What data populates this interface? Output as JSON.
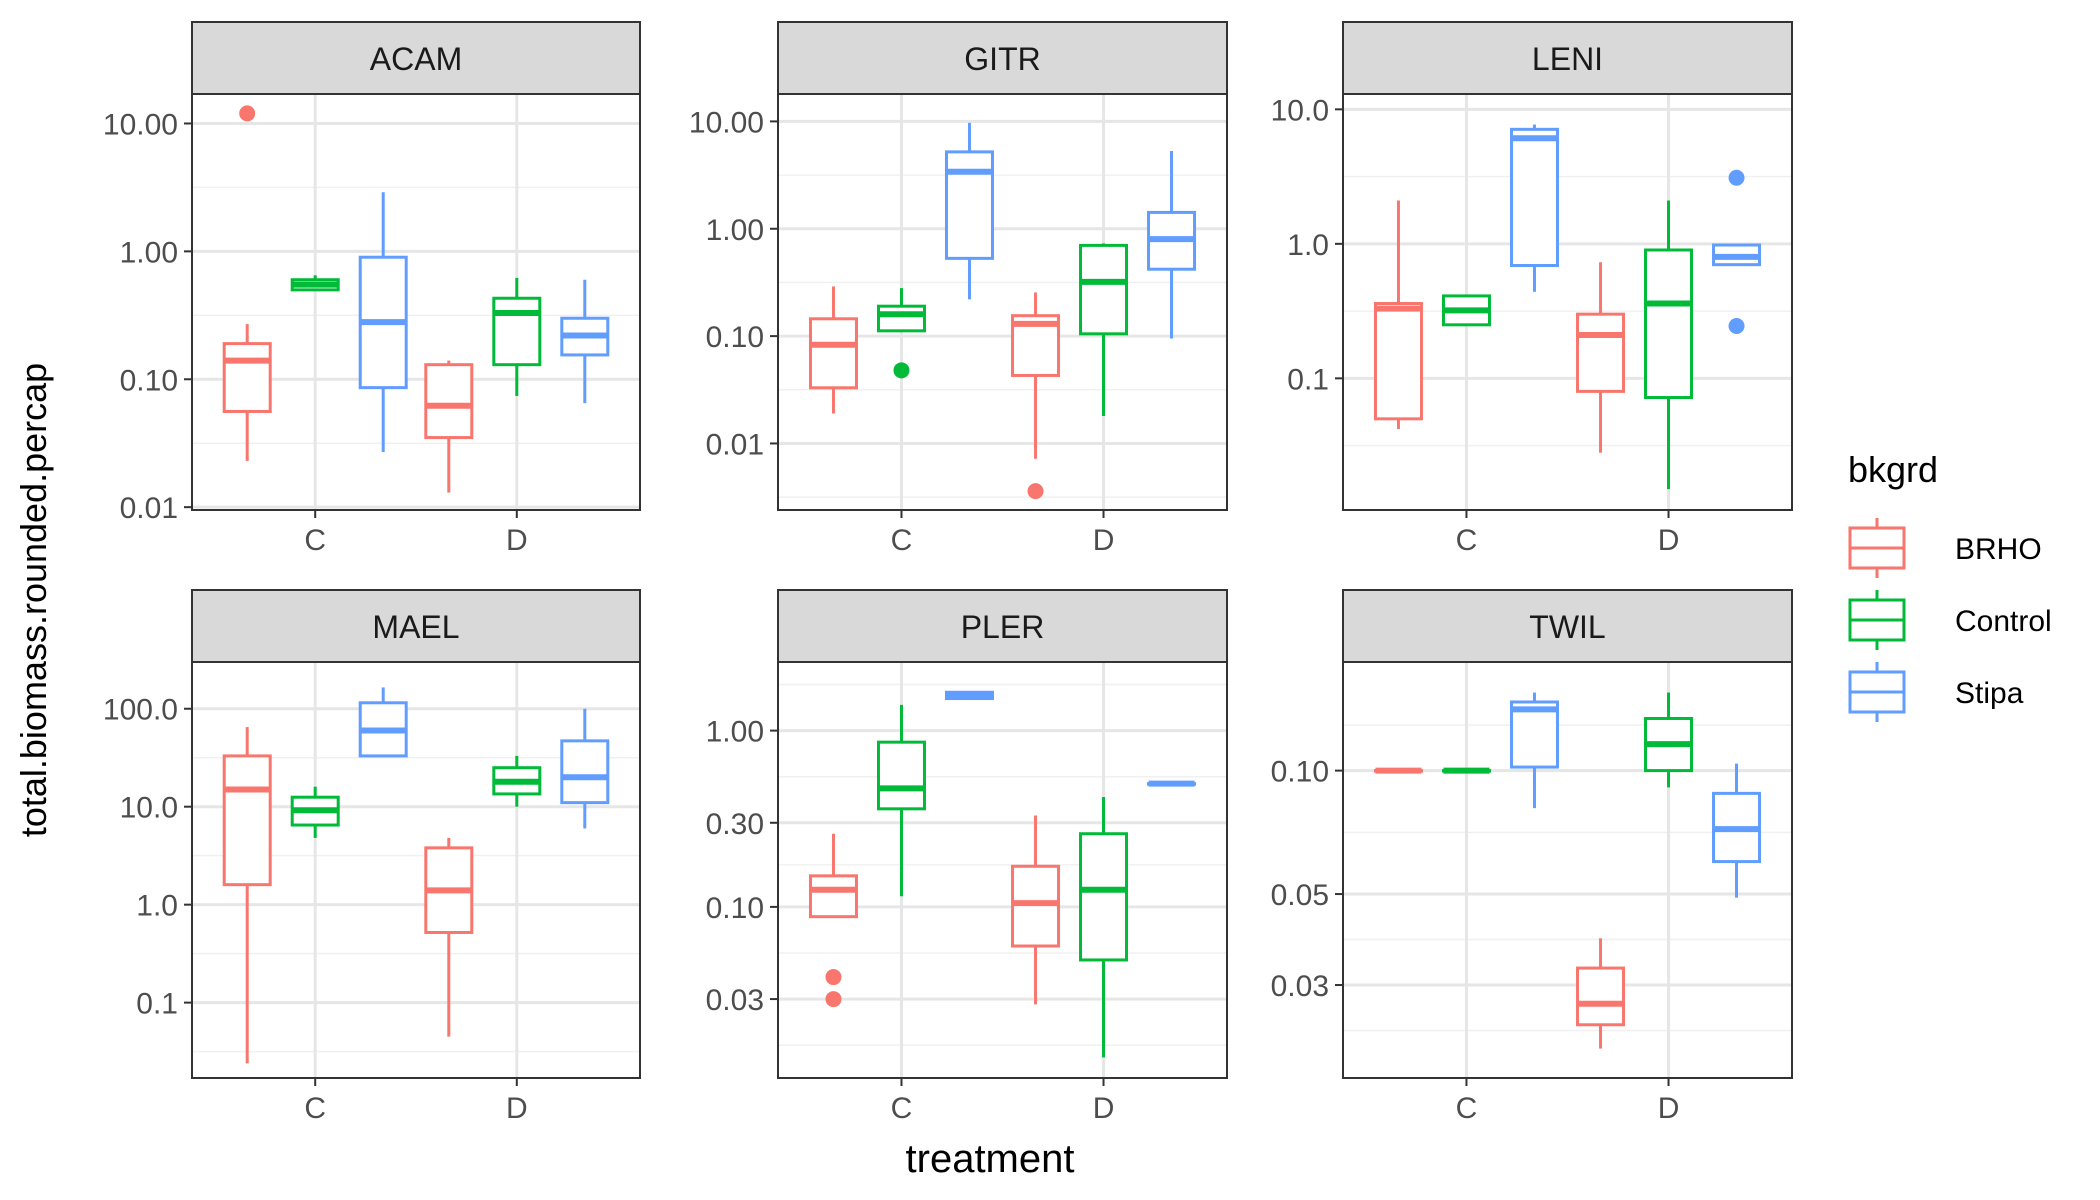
{
  "chart_data": {
    "type": "boxplot",
    "title": "",
    "xlabel": "treatment",
    "ylabel": "total.biomass.rounded.percap",
    "y_scale": "log10",
    "grid": true,
    "facet_layout": "3 columns x 2 rows",
    "categories": [
      "C",
      "D"
    ],
    "legend": {
      "title": "bkgrd",
      "position": "right",
      "entries": [
        {
          "name": "BRHO",
          "color": "#F8766D"
        },
        {
          "name": "Control",
          "color": "#00BA38"
        },
        {
          "name": "Stipa",
          "color": "#619CFF"
        }
      ]
    },
    "panels": [
      {
        "name": "ACAM",
        "ylim": [
          0.0095,
          17
        ],
        "ticks": [
          {
            "v": 0.01,
            "label": "0.01"
          },
          {
            "v": 0.1,
            "label": "0.10"
          },
          {
            "v": 1,
            "label": "1.00"
          },
          {
            "v": 10,
            "label": "10.00"
          }
        ],
        "boxes": [
          {
            "category": "C",
            "series": "BRHO",
            "min": 0.023,
            "q1": 0.056,
            "median": 0.14,
            "q3": 0.19,
            "max": 0.27,
            "outliers": [
              12
            ]
          },
          {
            "category": "C",
            "series": "Control",
            "min": 0.5,
            "q1": 0.5,
            "median": 0.55,
            "q3": 0.6,
            "max": 0.65,
            "outliers": []
          },
          {
            "category": "C",
            "series": "Stipa",
            "min": 0.027,
            "q1": 0.086,
            "median": 0.28,
            "q3": 0.9,
            "max": 2.9,
            "outliers": []
          },
          {
            "category": "D",
            "series": "BRHO",
            "min": 0.013,
            "q1": 0.035,
            "median": 0.062,
            "q3": 0.13,
            "max": 0.14,
            "outliers": []
          },
          {
            "category": "D",
            "series": "Control",
            "min": 0.074,
            "q1": 0.13,
            "median": 0.33,
            "q3": 0.43,
            "max": 0.62,
            "outliers": []
          },
          {
            "category": "D",
            "series": "Stipa",
            "min": 0.065,
            "q1": 0.155,
            "median": 0.22,
            "q3": 0.3,
            "max": 0.6,
            "outliers": []
          }
        ]
      },
      {
        "name": "GITR",
        "ylim": [
          0.0024,
          18
        ],
        "ticks": [
          {
            "v": 0.01,
            "label": "0.01"
          },
          {
            "v": 0.1,
            "label": "0.10"
          },
          {
            "v": 1,
            "label": "1.00"
          },
          {
            "v": 10,
            "label": "10.00"
          }
        ],
        "boxes": [
          {
            "category": "C",
            "series": "BRHO",
            "min": 0.019,
            "q1": 0.033,
            "median": 0.083,
            "q3": 0.145,
            "max": 0.29,
            "outliers": []
          },
          {
            "category": "C",
            "series": "Control",
            "min": 0.11,
            "q1": 0.112,
            "median": 0.16,
            "q3": 0.19,
            "max": 0.28,
            "outliers": [
              0.048
            ]
          },
          {
            "category": "C",
            "series": "Stipa",
            "min": 0.22,
            "q1": 0.53,
            "median": 3.4,
            "q3": 5.2,
            "max": 9.7,
            "outliers": []
          },
          {
            "category": "D",
            "series": "BRHO",
            "min": 0.0072,
            "q1": 0.043,
            "median": 0.13,
            "q3": 0.155,
            "max": 0.255,
            "outliers": [
              0.0036
            ]
          },
          {
            "category": "D",
            "series": "Control",
            "min": 0.018,
            "q1": 0.105,
            "median": 0.32,
            "q3": 0.7,
            "max": 0.73,
            "outliers": []
          },
          {
            "category": "D",
            "series": "Stipa",
            "min": 0.095,
            "q1": 0.42,
            "median": 0.8,
            "q3": 1.42,
            "max": 5.3,
            "outliers": []
          }
        ]
      },
      {
        "name": "LENI",
        "ylim": [
          0.0105,
          13
        ],
        "ticks": [
          {
            "v": 0.1,
            "label": "0.1"
          },
          {
            "v": 1,
            "label": "1.0"
          },
          {
            "v": 10,
            "label": "10.0"
          }
        ],
        "boxes": [
          {
            "category": "C",
            "series": "BRHO",
            "min": 0.042,
            "q1": 0.05,
            "median": 0.33,
            "q3": 0.36,
            "max": 2.1,
            "outliers": []
          },
          {
            "category": "C",
            "series": "Control",
            "min": 0.245,
            "q1": 0.25,
            "median": 0.32,
            "q3": 0.41,
            "max": 0.41,
            "outliers": []
          },
          {
            "category": "C",
            "series": "Stipa",
            "min": 0.44,
            "q1": 0.69,
            "median": 6.1,
            "q3": 7.1,
            "max": 7.7,
            "outliers": []
          },
          {
            "category": "D",
            "series": "BRHO",
            "min": 0.028,
            "q1": 0.08,
            "median": 0.21,
            "q3": 0.3,
            "max": 0.73,
            "outliers": []
          },
          {
            "category": "D",
            "series": "Control",
            "min": 0.015,
            "q1": 0.072,
            "median": 0.36,
            "q3": 0.9,
            "max": 2.1,
            "outliers": []
          },
          {
            "category": "D",
            "series": "Stipa",
            "min": 0.7,
            "q1": 0.7,
            "median": 0.8,
            "q3": 0.98,
            "max": 0.98,
            "outliers": [
              3.1,
              0.245
            ]
          }
        ]
      },
      {
        "name": "MAEL",
        "ylim": [
          0.017,
          300
        ],
        "ticks": [
          {
            "v": 0.1,
            "label": "0.1"
          },
          {
            "v": 1,
            "label": "1.0"
          },
          {
            "v": 10,
            "label": "10.0"
          },
          {
            "v": 100,
            "label": "100.0"
          }
        ],
        "boxes": [
          {
            "category": "C",
            "series": "BRHO",
            "min": 0.024,
            "q1": 1.6,
            "median": 15,
            "q3": 33,
            "max": 65,
            "outliers": []
          },
          {
            "category": "C",
            "series": "Control",
            "min": 4.8,
            "q1": 6.5,
            "median": 9.2,
            "q3": 12.5,
            "max": 16,
            "outliers": []
          },
          {
            "category": "C",
            "series": "Stipa",
            "min": 33,
            "q1": 33,
            "median": 60,
            "q3": 115,
            "max": 165,
            "outliers": []
          },
          {
            "category": "D",
            "series": "BRHO",
            "min": 0.045,
            "q1": 0.52,
            "median": 1.4,
            "q3": 3.8,
            "max": 4.8,
            "outliers": []
          },
          {
            "category": "D",
            "series": "Control",
            "min": 10,
            "q1": 13.5,
            "median": 18,
            "q3": 25,
            "max": 33,
            "outliers": []
          },
          {
            "category": "D",
            "series": "Stipa",
            "min": 6,
            "q1": 11,
            "median": 20,
            "q3": 47,
            "max": 100,
            "outliers": []
          }
        ]
      },
      {
        "name": "PLER",
        "ylim": [
          0.0107,
          2.45
        ],
        "ticks": [
          {
            "v": 0.03,
            "label": "0.03"
          },
          {
            "v": 0.1,
            "label": "0.10"
          },
          {
            "v": 0.3,
            "label": "0.30"
          },
          {
            "v": 1,
            "label": "1.00"
          }
        ],
        "boxes": [
          {
            "category": "C",
            "series": "BRHO",
            "min": 0.088,
            "q1": 0.088,
            "median": 0.125,
            "q3": 0.15,
            "max": 0.26,
            "outliers": [
              0.04,
              0.03
            ]
          },
          {
            "category": "C",
            "series": "Control",
            "min": 0.115,
            "q1": 0.36,
            "median": 0.47,
            "q3": 0.86,
            "max": 1.4,
            "outliers": []
          },
          {
            "category": "C",
            "series": "Stipa",
            "min": 1.52,
            "q1": 1.52,
            "median": 1.58,
            "q3": 1.65,
            "max": 1.65,
            "outliers": []
          },
          {
            "category": "D",
            "series": "BRHO",
            "min": 0.028,
            "q1": 0.06,
            "median": 0.105,
            "q3": 0.17,
            "max": 0.33,
            "outliers": []
          },
          {
            "category": "D",
            "series": "Control",
            "min": 0.014,
            "q1": 0.05,
            "median": 0.125,
            "q3": 0.26,
            "max": 0.42,
            "outliers": []
          },
          {
            "category": "D",
            "series": "Stipa",
            "min": 0.5,
            "q1": 0.5,
            "median": 0.5,
            "q3": 0.5,
            "max": 0.5,
            "outliers": []
          }
        ]
      },
      {
        "name": "TWIL",
        "ylim": [
          0.0178,
          0.184
        ],
        "ticks": [
          {
            "v": 0.03,
            "label": "0.03"
          },
          {
            "v": 0.05,
            "label": "0.05"
          },
          {
            "v": 0.1,
            "label": "0.10"
          }
        ],
        "boxes": [
          {
            "category": "C",
            "series": "BRHO",
            "min": 0.1,
            "q1": 0.1,
            "median": 0.1,
            "q3": 0.1,
            "max": 0.1,
            "outliers": []
          },
          {
            "category": "C",
            "series": "Control",
            "min": 0.1,
            "q1": 0.1,
            "median": 0.1,
            "q3": 0.1,
            "max": 0.1,
            "outliers": []
          },
          {
            "category": "C",
            "series": "Stipa",
            "min": 0.081,
            "q1": 0.102,
            "median": 0.141,
            "q3": 0.147,
            "max": 0.155,
            "outliers": []
          },
          {
            "category": "D",
            "series": "BRHO",
            "min": 0.021,
            "q1": 0.024,
            "median": 0.027,
            "q3": 0.033,
            "max": 0.039,
            "outliers": []
          },
          {
            "category": "D",
            "series": "Control",
            "min": 0.091,
            "q1": 0.1,
            "median": 0.116,
            "q3": 0.134,
            "max": 0.155,
            "outliers": []
          },
          {
            "category": "D",
            "series": "Stipa",
            "min": 0.049,
            "q1": 0.06,
            "median": 0.072,
            "q3": 0.088,
            "max": 0.104,
            "outliers": []
          }
        ]
      }
    ]
  }
}
